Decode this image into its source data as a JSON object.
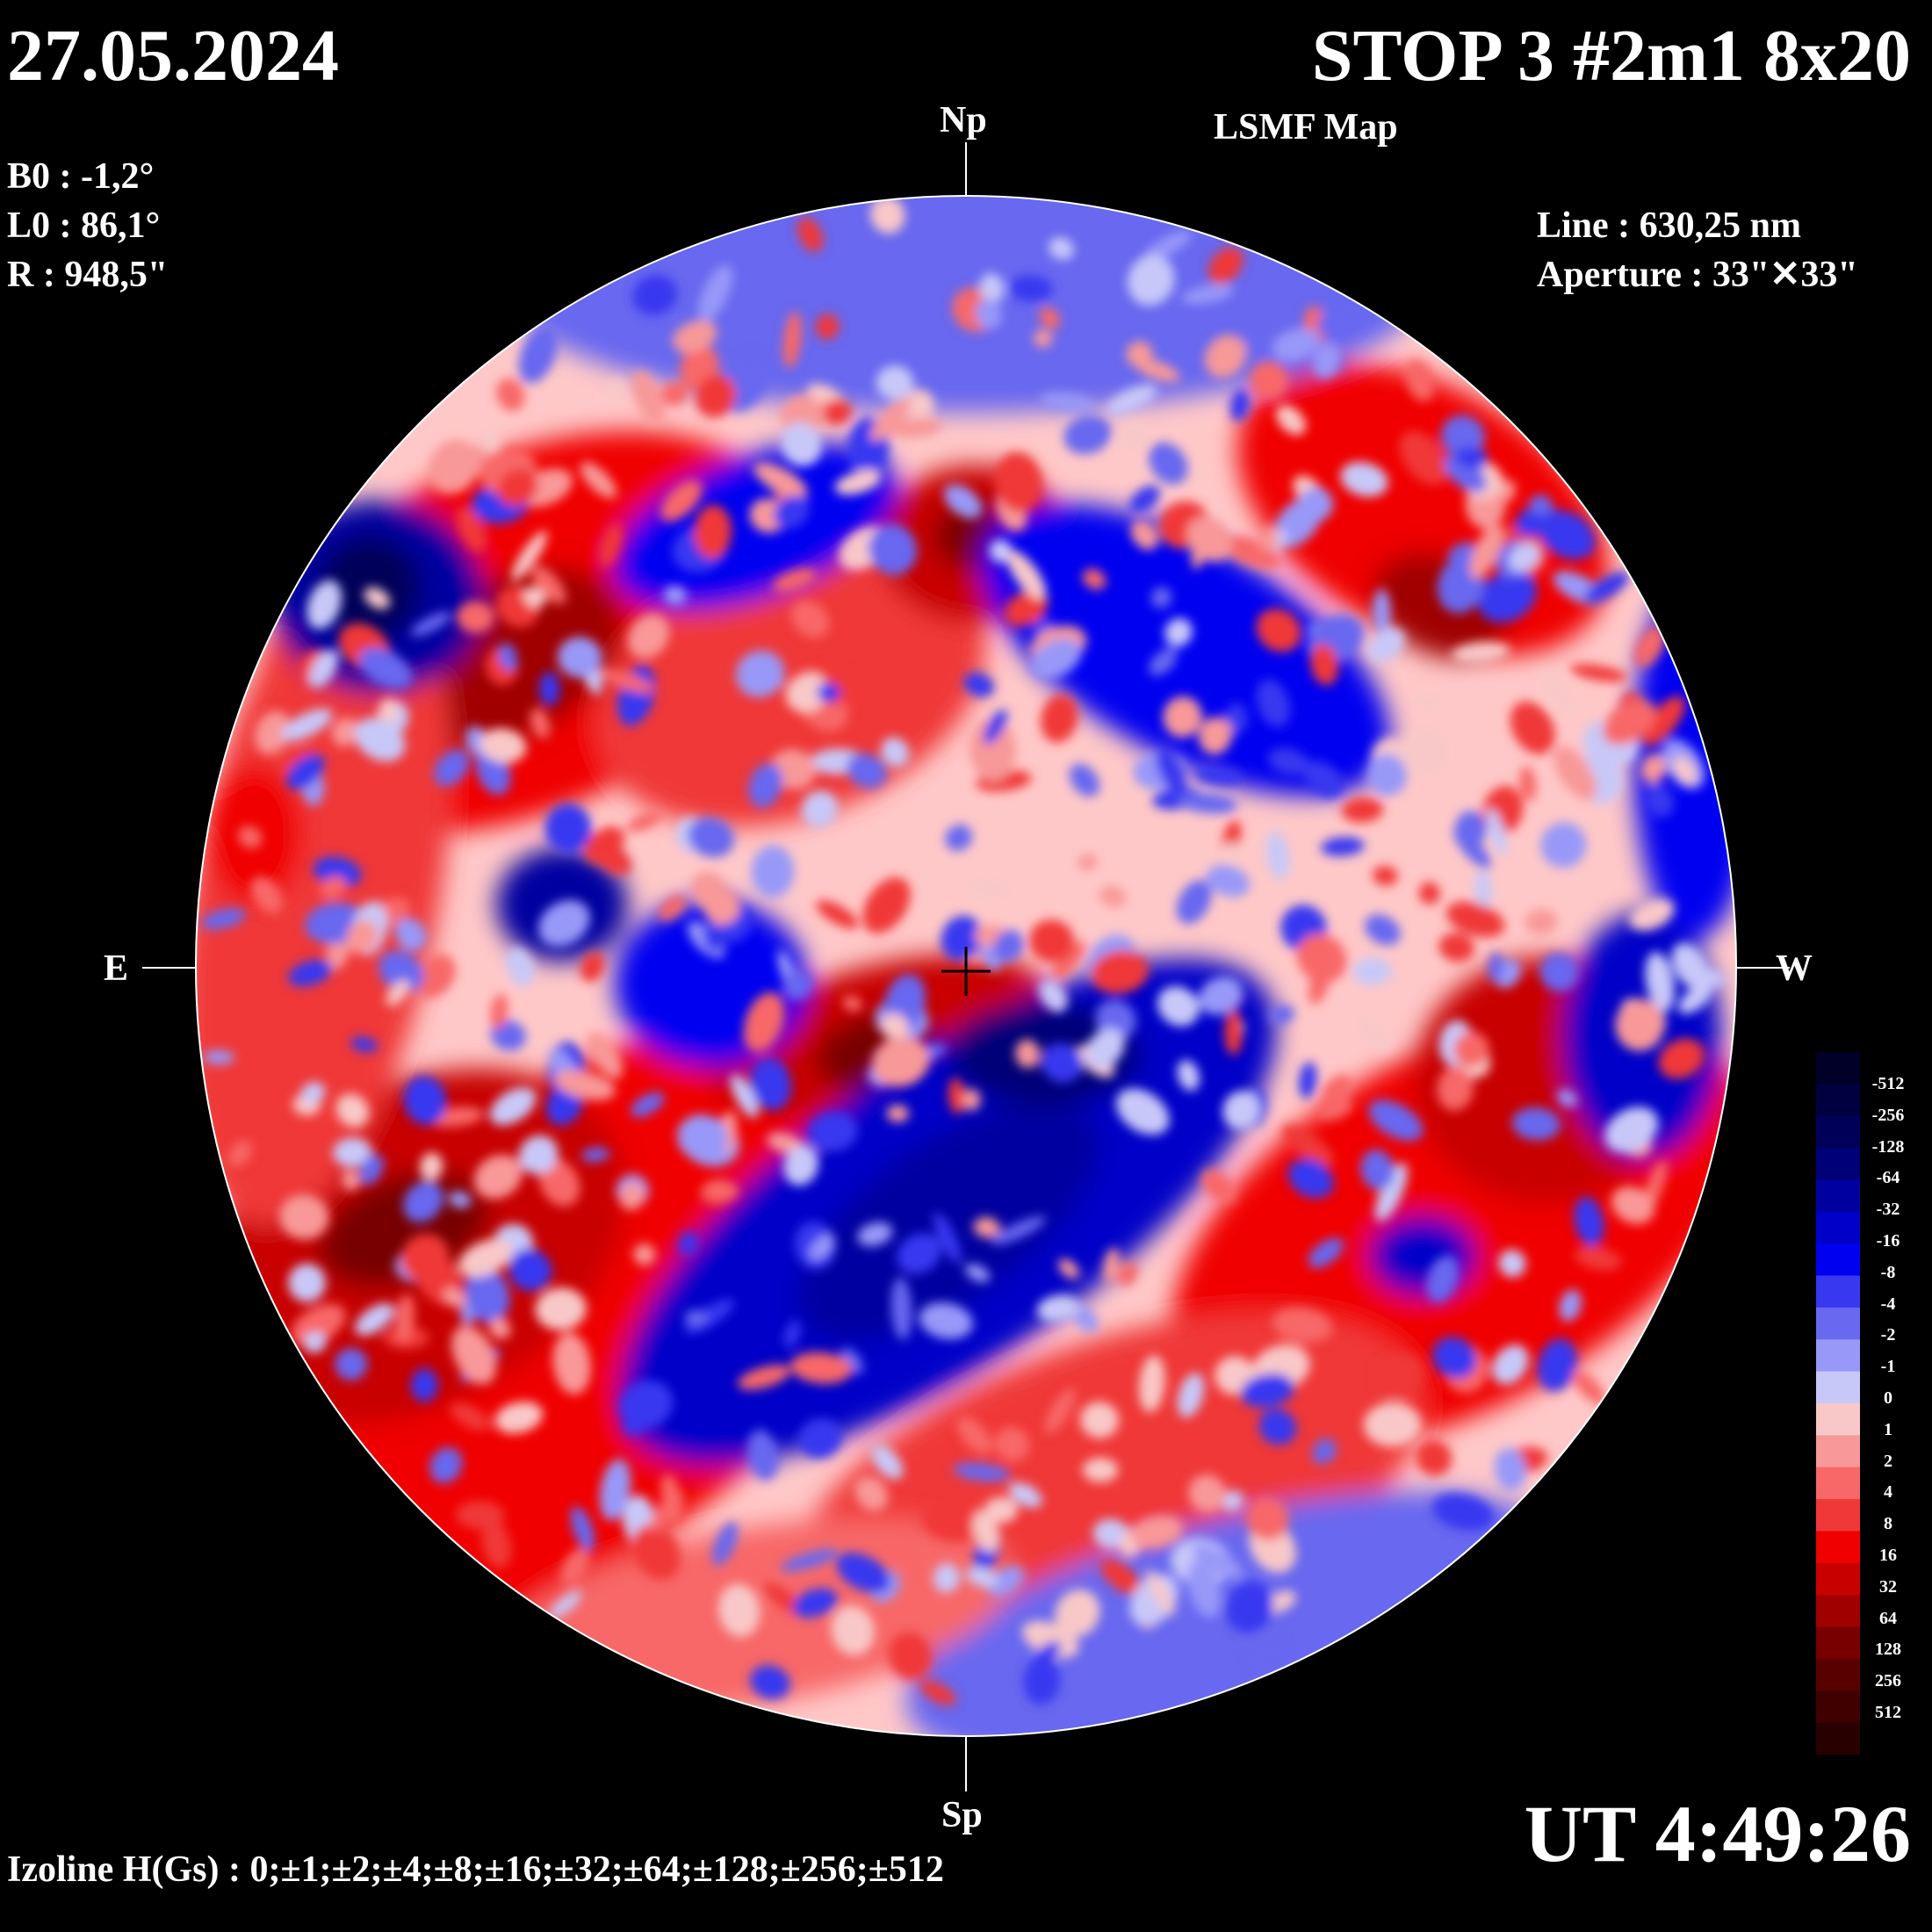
{
  "header": {
    "date": "27.05.2024",
    "title": "STOP 3 #2m1 8x20",
    "subtitle": "LSMF  Map"
  },
  "params": {
    "b0": "B0 : -1,2°",
    "l0": "L0 : 86,1°",
    "r": "R  : 948,5\""
  },
  "instrument": {
    "line": "Line :  630,25 nm",
    "aperture": "Aperture : 33\"✕33\""
  },
  "directions": {
    "north": "Np",
    "south": "Sp",
    "east": "E",
    "west": "W"
  },
  "time": "UT 4:49:26",
  "izoline": "Izoline H(Gs) : 0;±1;±2;±4;±8;±16;±32;±64;±128;±256;±512",
  "colors": {
    "negative": [
      "#c8c8f8",
      "#9898f8",
      "#6868f0",
      "#3838f0",
      "#0000f0",
      "#0000c8",
      "#0000a0",
      "#000078",
      "#000058",
      "#000040",
      "#000028"
    ],
    "positive": [
      "#f8c8c8",
      "#f89898",
      "#f86868",
      "#f03838",
      "#f00000",
      "#c80000",
      "#a00000",
      "#780000",
      "#580000",
      "#400000",
      "#280000"
    ]
  },
  "colorbar": {
    "labels": [
      "-512",
      "-256",
      "-128",
      "-64",
      "-32",
      "-16",
      "-8",
      "-4",
      "-2",
      "-1",
      "0",
      "1",
      "2",
      "4",
      "8",
      "16",
      "32",
      "64",
      "128",
      "256",
      "512"
    ]
  }
}
